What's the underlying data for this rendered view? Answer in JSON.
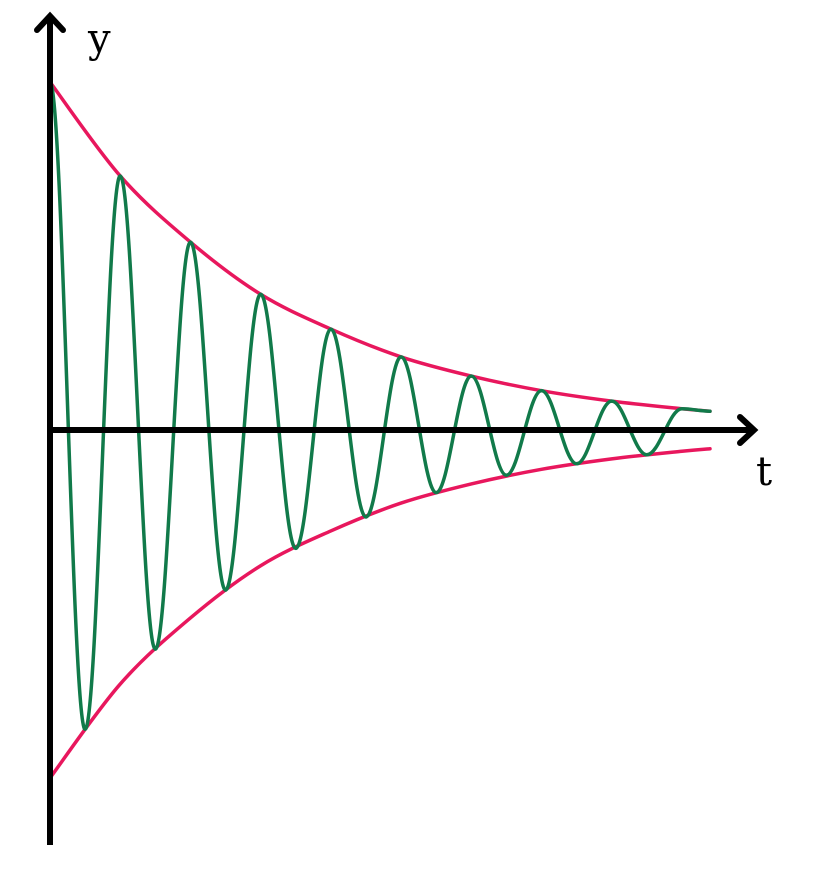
{
  "chart_data": {
    "type": "line",
    "title": "",
    "xlabel": "t",
    "ylabel": "y",
    "xlim": [
      0,
      9.4
    ],
    "ylim": [
      -1.1,
      1.15
    ],
    "grid": false,
    "legend": "none",
    "series": [
      {
        "kind": "envelope-upper",
        "color": "#e8175d",
        "x": [
          0,
          1,
          2,
          3,
          4,
          5,
          6,
          7,
          8,
          9,
          9.4
        ],
        "y": [
          1.0,
          0.73,
          0.54,
          0.39,
          0.29,
          0.21,
          0.155,
          0.113,
          0.083,
          0.061,
          0.054
        ]
      },
      {
        "kind": "envelope-lower",
        "color": "#e8175d",
        "x": [
          0,
          1,
          2,
          3,
          4,
          5,
          6,
          7,
          8,
          9,
          9.4
        ],
        "y": [
          -1.0,
          -0.73,
          -0.54,
          -0.39,
          -0.29,
          -0.21,
          -0.155,
          -0.113,
          -0.083,
          -0.061,
          -0.054
        ]
      },
      {
        "kind": "damped-oscillation",
        "color": "#117a4a",
        "x": [
          0,
          0.5,
          1,
          1.5,
          2,
          2.5,
          3,
          3.5,
          4,
          4.5,
          5,
          5.5,
          6,
          6.5,
          7,
          7.5,
          8,
          8.5,
          9,
          9.4
        ],
        "y": [
          1.0,
          -0.86,
          0.73,
          -0.63,
          0.54,
          -0.46,
          0.39,
          -0.34,
          0.29,
          -0.25,
          0.21,
          -0.18,
          0.155,
          -0.13,
          0.113,
          -0.097,
          0.083,
          -0.071,
          0.061,
          0.054
        ]
      }
    ]
  }
}
